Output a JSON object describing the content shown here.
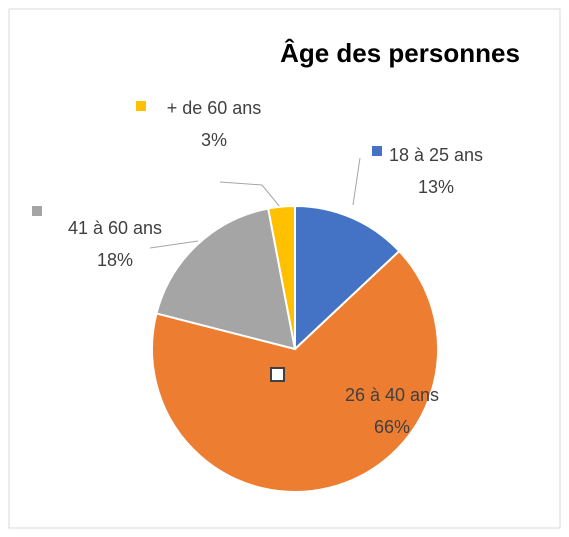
{
  "chart_data": {
    "type": "pie",
    "title": "Âge des personnes",
    "categories": [
      "18 à 25 ans",
      "26 à 40 ans",
      "41 à 60 ans",
      "+ de 60 ans"
    ],
    "values": [
      13,
      66,
      18,
      3
    ],
    "value_labels": [
      "13%",
      "66%",
      "18%",
      "3%"
    ],
    "colors": [
      "#4472c4",
      "#ed7d31",
      "#a5a5a5",
      "#ffc000"
    ]
  }
}
